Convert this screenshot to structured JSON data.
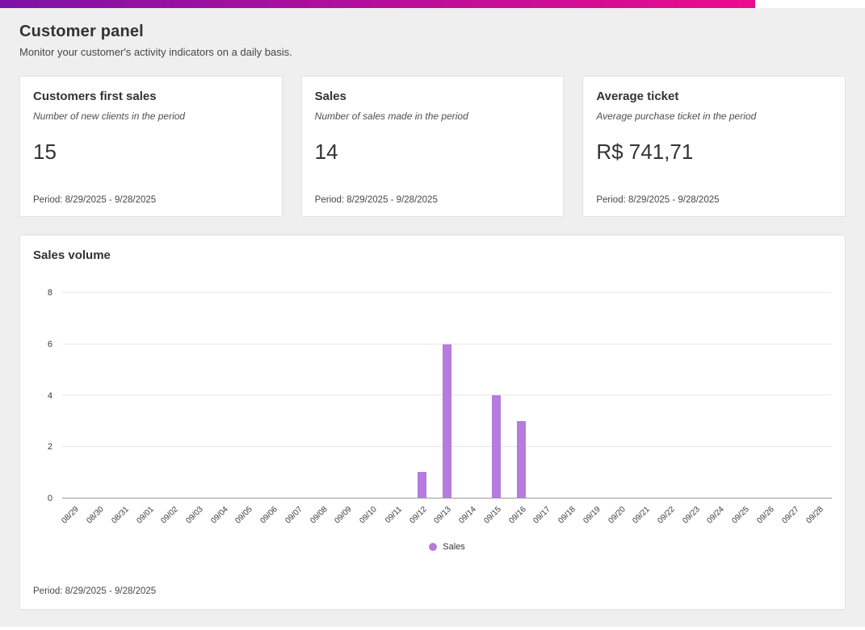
{
  "page": {
    "title": "Customer panel",
    "subtitle": "Monitor your customer's activity indicators on a daily basis."
  },
  "cards": [
    {
      "title": "Customers first sales",
      "description": "Number of new clients in the period",
      "value": "15",
      "period": "Period: 8/29/2025 - 9/28/2025"
    },
    {
      "title": "Sales",
      "description": "Number of sales made in the period",
      "value": "14",
      "period": "Period: 8/29/2025 - 9/28/2025"
    },
    {
      "title": "Average ticket",
      "description": "Average purchase ticket in the period",
      "value": "R$ 741,71",
      "period": "Period: 8/29/2025 - 9/28/2025"
    }
  ],
  "chart_card": {
    "title": "Sales volume",
    "period": "Period: 8/29/2025 - 9/28/2025"
  },
  "chart_data": {
    "type": "bar",
    "title": "Sales volume",
    "categories": [
      "08/29",
      "08/30",
      "08/31",
      "09/01",
      "09/02",
      "09/03",
      "09/04",
      "09/05",
      "09/06",
      "09/07",
      "09/08",
      "09/09",
      "09/10",
      "09/11",
      "09/12",
      "09/13",
      "09/14",
      "09/15",
      "09/16",
      "09/17",
      "09/18",
      "09/19",
      "09/20",
      "09/21",
      "09/22",
      "09/23",
      "09/24",
      "09/25",
      "09/26",
      "09/27",
      "09/28"
    ],
    "series": [
      {
        "name": "Sales",
        "values": [
          0,
          0,
          0,
          0,
          0,
          0,
          0,
          0,
          0,
          0,
          0,
          0,
          0,
          0,
          1,
          6,
          0,
          4,
          3,
          0,
          0,
          0,
          0,
          0,
          0,
          0,
          0,
          0,
          0,
          0,
          0
        ]
      }
    ],
    "xlabel": "",
    "ylabel": "",
    "ylim": [
      0,
      8
    ],
    "yticks": [
      0,
      2,
      4,
      6,
      8
    ],
    "grid": true,
    "legend_position": "bottom",
    "bar_color": "#b57bdf"
  },
  "colors": {
    "gradient_start": "#7d12a6",
    "gradient_end": "#ec0b8e",
    "bar": "#b57bdf"
  }
}
